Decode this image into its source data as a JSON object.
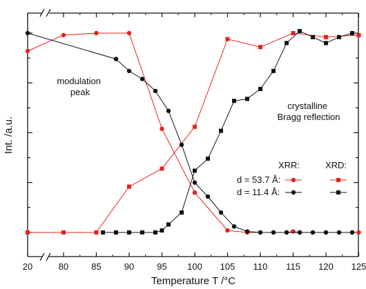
{
  "chart_data": {
    "type": "line",
    "xlabel": "Temperature T /°C",
    "ylabel": "Int. /a.u.",
    "x_ticks": [
      "20",
      "80",
      "85",
      "90",
      "95",
      "100",
      "105",
      "110",
      "115",
      "120",
      "125"
    ],
    "x_axis_break": "broken between 20 and 80",
    "y_tick_labels": "none",
    "grid": false,
    "annotations": [
      "modulation\npeak",
      "crystalline\nBragg reflection"
    ],
    "legend": {
      "position": "lower-right",
      "column_headers": [
        "XRR:",
        "XRD:"
      ],
      "rows": [
        {
          "label": "d = 53.7 Å:",
          "xrr_marker": "red circle",
          "xrd_marker": "red square"
        },
        {
          "label": "d = 11.4 Å:",
          "xrr_marker": "black circle",
          "xrd_marker": "black square"
        }
      ]
    },
    "colors": {
      "red": "#e8201c",
      "black": "#111111"
    },
    "ylim": [
      0,
      1.05
    ],
    "series": [
      {
        "marker": "circle",
        "color": "red",
        "x": [
          20,
          80,
          85,
          90,
          95,
          100,
          105,
          108,
          110,
          112,
          114,
          115,
          116,
          118,
          120,
          122,
          124,
          125
        ],
        "y": [
          0.91,
          0.99,
          1.0,
          1.0,
          0.52,
          0.2,
          0.01,
          0.0,
          0.0,
          0.0,
          0.0,
          0.005,
          0.0,
          0.0,
          0.0,
          0.0,
          0.0,
          0.0
        ]
      },
      {
        "marker": "square",
        "color": "red",
        "x": [
          20,
          80,
          85,
          90,
          95,
          100,
          105,
          110,
          115,
          120,
          125
        ],
        "y": [
          0.0,
          0.0,
          0.0,
          0.23,
          0.32,
          0.53,
          0.97,
          0.93,
          1.0,
          0.98,
          0.99
        ]
      },
      {
        "marker": "circle",
        "color": "black",
        "x": [
          20,
          88,
          90,
          92,
          94,
          96,
          98,
          100,
          102,
          104,
          106,
          108,
          110,
          112,
          114,
          116,
          118,
          120,
          122,
          124
        ],
        "y": [
          1.0,
          0.87,
          0.81,
          0.77,
          0.71,
          0.61,
          0.44,
          0.25,
          0.18,
          0.1,
          0.03,
          0.005,
          0.0,
          0.0,
          0.0,
          0.0,
          0.0,
          0.0,
          0.0,
          0.0
        ]
      },
      {
        "marker": "square",
        "color": "black",
        "x": [
          86,
          88,
          90,
          92,
          94,
          95,
          96,
          98,
          100,
          102,
          104,
          106,
          108,
          110,
          112,
          114,
          116,
          118,
          120,
          122,
          124
        ],
        "y": [
          0.0,
          0.0,
          0.0,
          0.0,
          0.0,
          0.01,
          0.04,
          0.1,
          0.31,
          0.37,
          0.51,
          0.66,
          0.67,
          0.72,
          0.81,
          0.95,
          1.01,
          0.98,
          0.95,
          0.98,
          1.0
        ]
      }
    ]
  }
}
